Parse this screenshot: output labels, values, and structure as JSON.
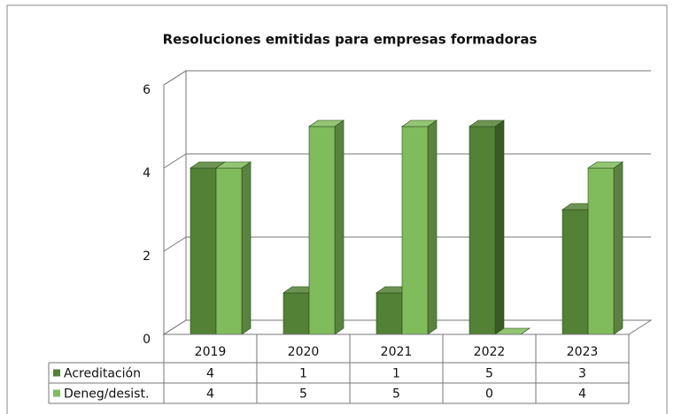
{
  "chart_data": {
    "type": "bar3d",
    "title": "Resoluciones emitidas para empresas formadoras",
    "categories": [
      "2019",
      "2020",
      "2021",
      "2022",
      "2023"
    ],
    "series": [
      {
        "name": "Acreditación",
        "color": "#538135",
        "values": [
          4,
          1,
          1,
          5,
          3
        ]
      },
      {
        "name": "Deneg/desist.",
        "color": "#80bb5c",
        "values": [
          4,
          5,
          5,
          0,
          4
        ]
      }
    ],
    "ylim": [
      0,
      6
    ],
    "yticks": [
      0,
      2,
      4,
      6
    ],
    "grid": true
  }
}
